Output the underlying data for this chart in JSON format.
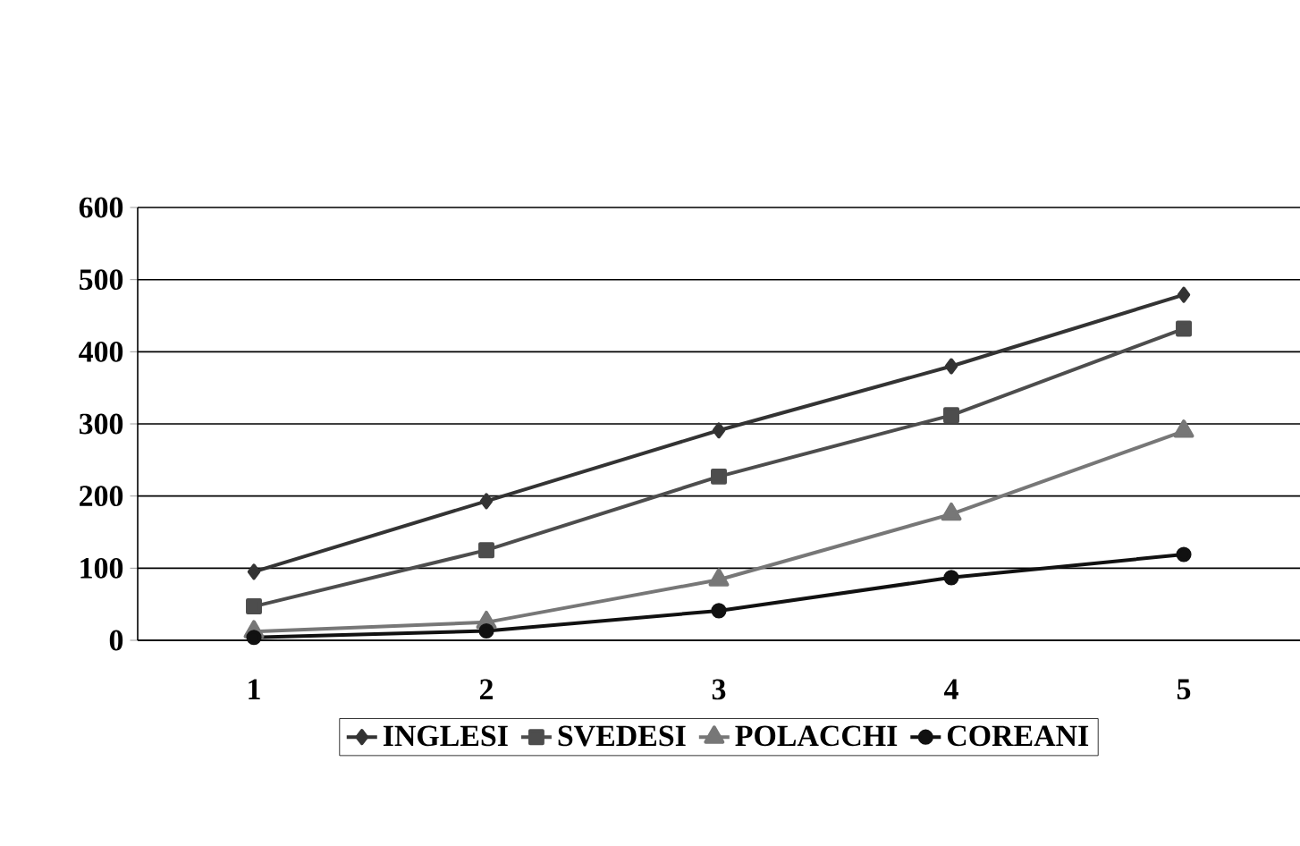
{
  "chart_data": {
    "type": "line",
    "categories": [
      "1",
      "2",
      "3",
      "4",
      "5"
    ],
    "series": [
      {
        "name": "INGLESI",
        "color": "#333333",
        "marker": "diamond",
        "values": [
          95,
          193,
          291,
          380,
          479
        ]
      },
      {
        "name": "SVEDESI",
        "color": "#4d4d4d",
        "marker": "square",
        "values": [
          47,
          125,
          227,
          312,
          432
        ]
      },
      {
        "name": "POLACCHI",
        "color": "#777777",
        "marker": "triangle",
        "values": [
          12,
          25,
          84,
          175,
          290
        ]
      },
      {
        "name": "COREANI",
        "color": "#111111",
        "marker": "circle",
        "values": [
          4,
          13,
          41,
          87,
          119
        ]
      }
    ],
    "ylim": [
      0,
      600
    ],
    "yticks": [
      0,
      100,
      200,
      300,
      400,
      500,
      600
    ],
    "grid": "y",
    "legend": "bottom",
    "line_style": "solid"
  }
}
